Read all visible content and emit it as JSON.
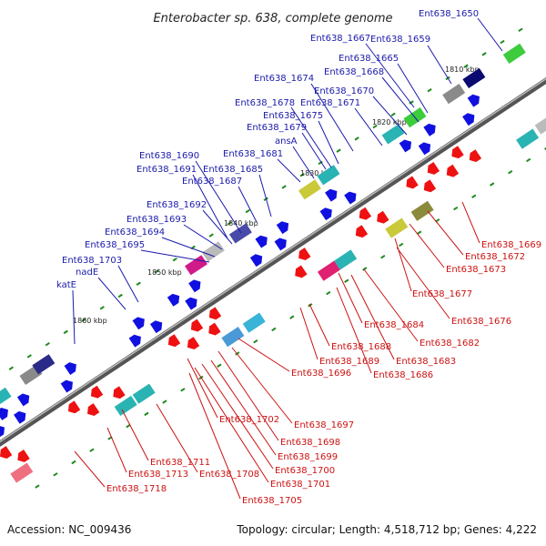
{
  "title": "Enterobacter sp. 638, complete genome",
  "footer": {
    "accession": "Accession: NC_009436",
    "summary": "Topology: circular; Length: 4,518,712 bp; Genes: 4,222"
  },
  "colors": {
    "forward": "#1010e0",
    "reverse": "#ee1111",
    "label_top": "#1a1aaa",
    "label_bottom": "#cc1111",
    "tick": "#1e8a1e"
  },
  "kbp_labels": [
    "1810 kbp",
    "1820 kbp",
    "1830 kbp",
    "1840 kbp",
    "1850 kbp",
    "1860 kbp"
  ],
  "top_labels": [
    "Ent638_1650",
    "Ent638_1667",
    "Ent638_1659",
    "Ent638_1665",
    "Ent638_1668",
    "Ent638_1674",
    "Ent638_1670",
    "Ent638_1678",
    "Ent638_1671",
    "Ent638_1675",
    "Ent638_1679",
    "ansA",
    "Ent638_1681",
    "Ent638_1690",
    "Ent638_1691",
    "Ent638_1685",
    "Ent638_1687",
    "Ent638_1692",
    "Ent638_1693",
    "Ent638_1694",
    "Ent638_1695",
    "Ent638_1703",
    "nadE",
    "katE"
  ],
  "bottom_labels": [
    "Ent638_1669",
    "Ent638_1672",
    "Ent638_1673",
    "Ent638_1677",
    "Ent638_1676",
    "Ent638_1684",
    "Ent638_1682",
    "Ent638_1688",
    "Ent638_1689",
    "Ent638_1683",
    "Ent638_1696",
    "Ent638_1686",
    "Ent638_1702",
    "Ent638_1697",
    "Ent638_1698",
    "Ent638_1699",
    "Ent638_1711",
    "Ent638_1700",
    "Ent638_1713",
    "Ent638_1708",
    "Ent638_1701",
    "Ent638_1718",
    "Ent638_1705"
  ]
}
